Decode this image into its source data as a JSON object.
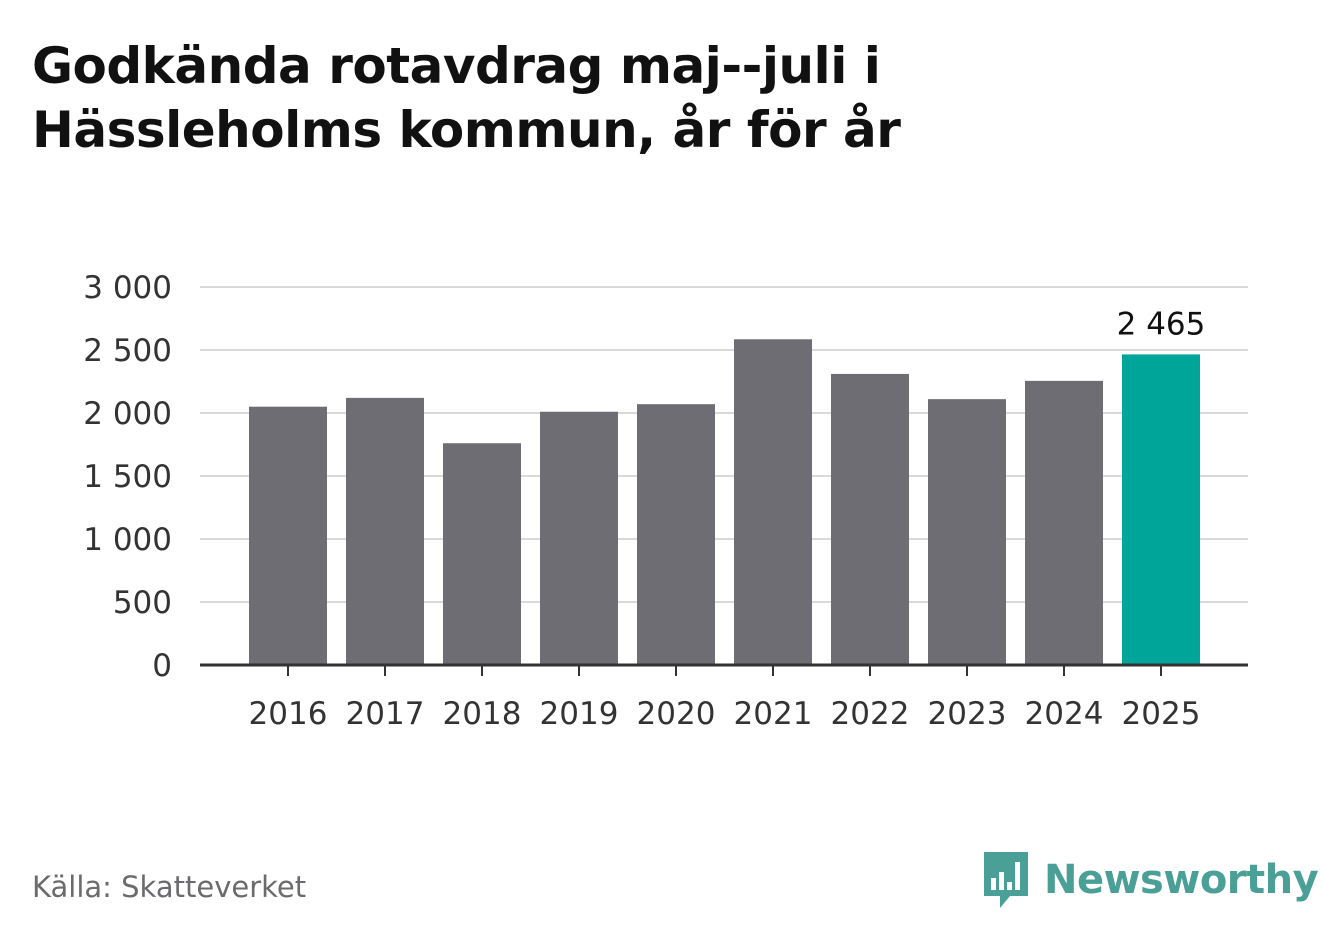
{
  "title_lines": [
    "Godkända rotavdrag maj--juli i",
    "Hässleholms kommun, år för år"
  ],
  "source": "Källa: Skatteverket",
  "brand": {
    "name": "Newsworthy",
    "icon": "bar-chart-speech-bubble-icon",
    "color": "#4a9f96"
  },
  "colors": {
    "bar": "#6d6d73",
    "highlight": "#00a59a",
    "grid": "#d9d9d9",
    "axis": "#333333",
    "text": "#333333"
  },
  "chart_data": {
    "type": "bar",
    "categories": [
      "2016",
      "2017",
      "2018",
      "2019",
      "2020",
      "2021",
      "2022",
      "2023",
      "2024",
      "2025"
    ],
    "values": [
      2050,
      2120,
      1760,
      2010,
      2070,
      2585,
      2310,
      2110,
      2255,
      2465
    ],
    "highlight_index": 9,
    "data_labels": [
      {
        "index": 9,
        "text": "2 465"
      }
    ],
    "yticks": [
      0,
      500,
      1000,
      1500,
      2000,
      2500,
      3000
    ],
    "ytick_labels": [
      "0",
      "500",
      "1 000",
      "1 500",
      "2 000",
      "2 500",
      "3 000"
    ],
    "ylim": [
      0,
      3000
    ],
    "grid": true,
    "title": "Godkända rotavdrag maj--juli i Hässleholms kommun, år för år",
    "xlabel": "",
    "ylabel": ""
  }
}
